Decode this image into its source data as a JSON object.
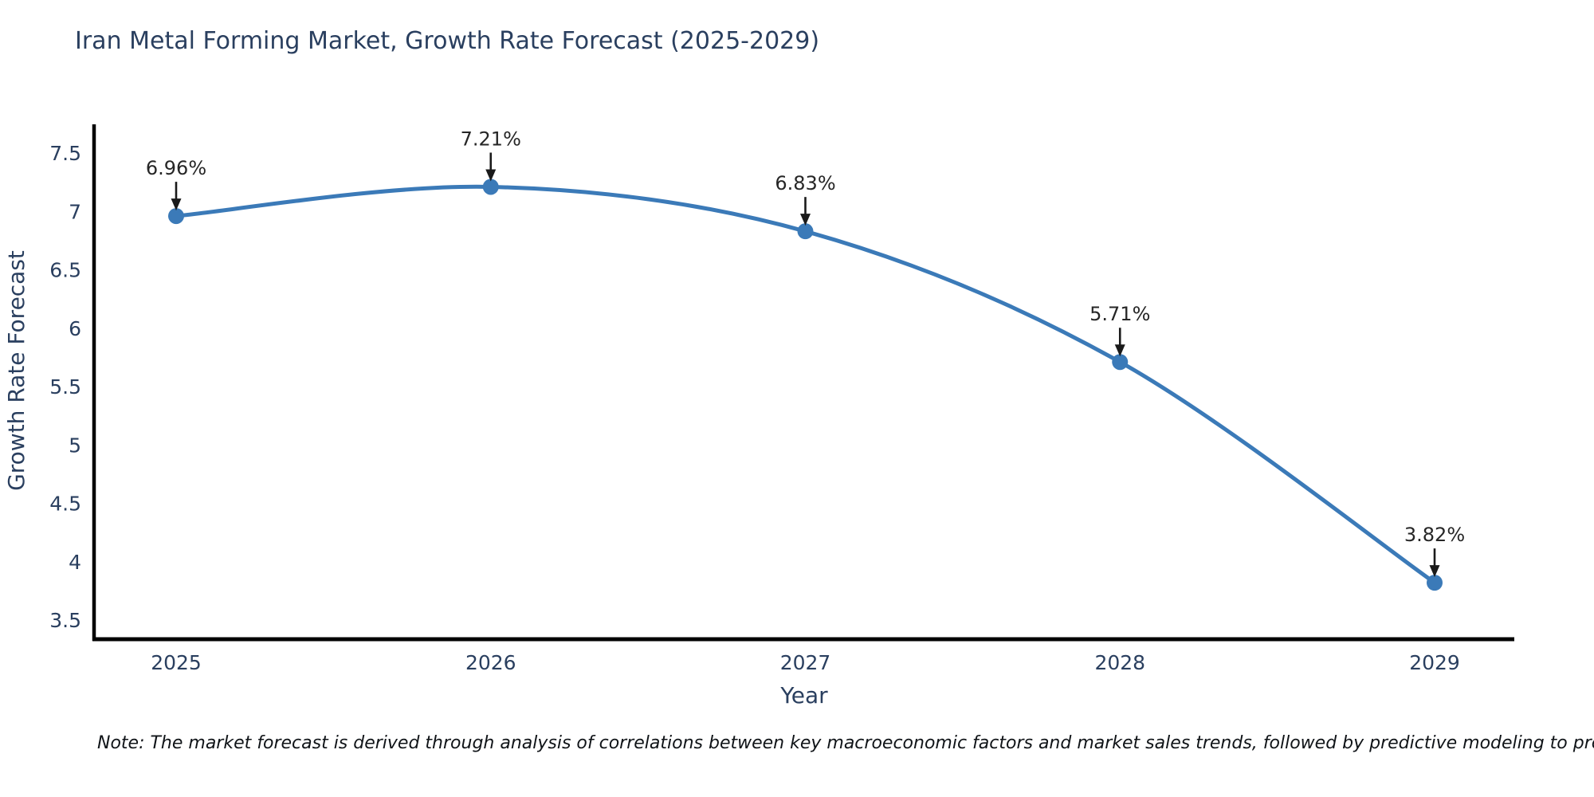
{
  "title": "Iran Metal Forming Market, Growth Rate Forecast (2025-2029)",
  "note": "Note: The market forecast is derived through analysis of correlations between key macroeconomic factors and market sales trends, followed by predictive modeling to project future sales",
  "chart_data": {
    "type": "line",
    "title": "Iran Metal Forming Market, Growth Rate Forecast (2025-2029)",
    "xlabel": "Year",
    "ylabel": "Growth Rate Forecast",
    "x": [
      2025,
      2026,
      2027,
      2028,
      2029
    ],
    "categories": [
      "2025",
      "2026",
      "2027",
      "2028",
      "2029"
    ],
    "series": [
      {
        "name": "Growth Rate Forecast",
        "values": [
          6.96,
          7.21,
          6.83,
          5.71,
          3.82
        ]
      }
    ],
    "point_labels": [
      "6.96%",
      "7.21%",
      "6.83%",
      "5.71%",
      "3.82%"
    ],
    "yticks": [
      3.5,
      4,
      4.5,
      5,
      5.5,
      6,
      6.5,
      7,
      7.5
    ],
    "ylim": [
      3.35,
      7.72
    ],
    "grid": false,
    "legend_position": "none",
    "line_shape": "spline",
    "line_color": "#3b7ab8",
    "marker_color": "#3b7ab8",
    "axis_line_color": "#000000",
    "tick_label_color": "#2a3f5f",
    "annotation_color": "#262626"
  }
}
